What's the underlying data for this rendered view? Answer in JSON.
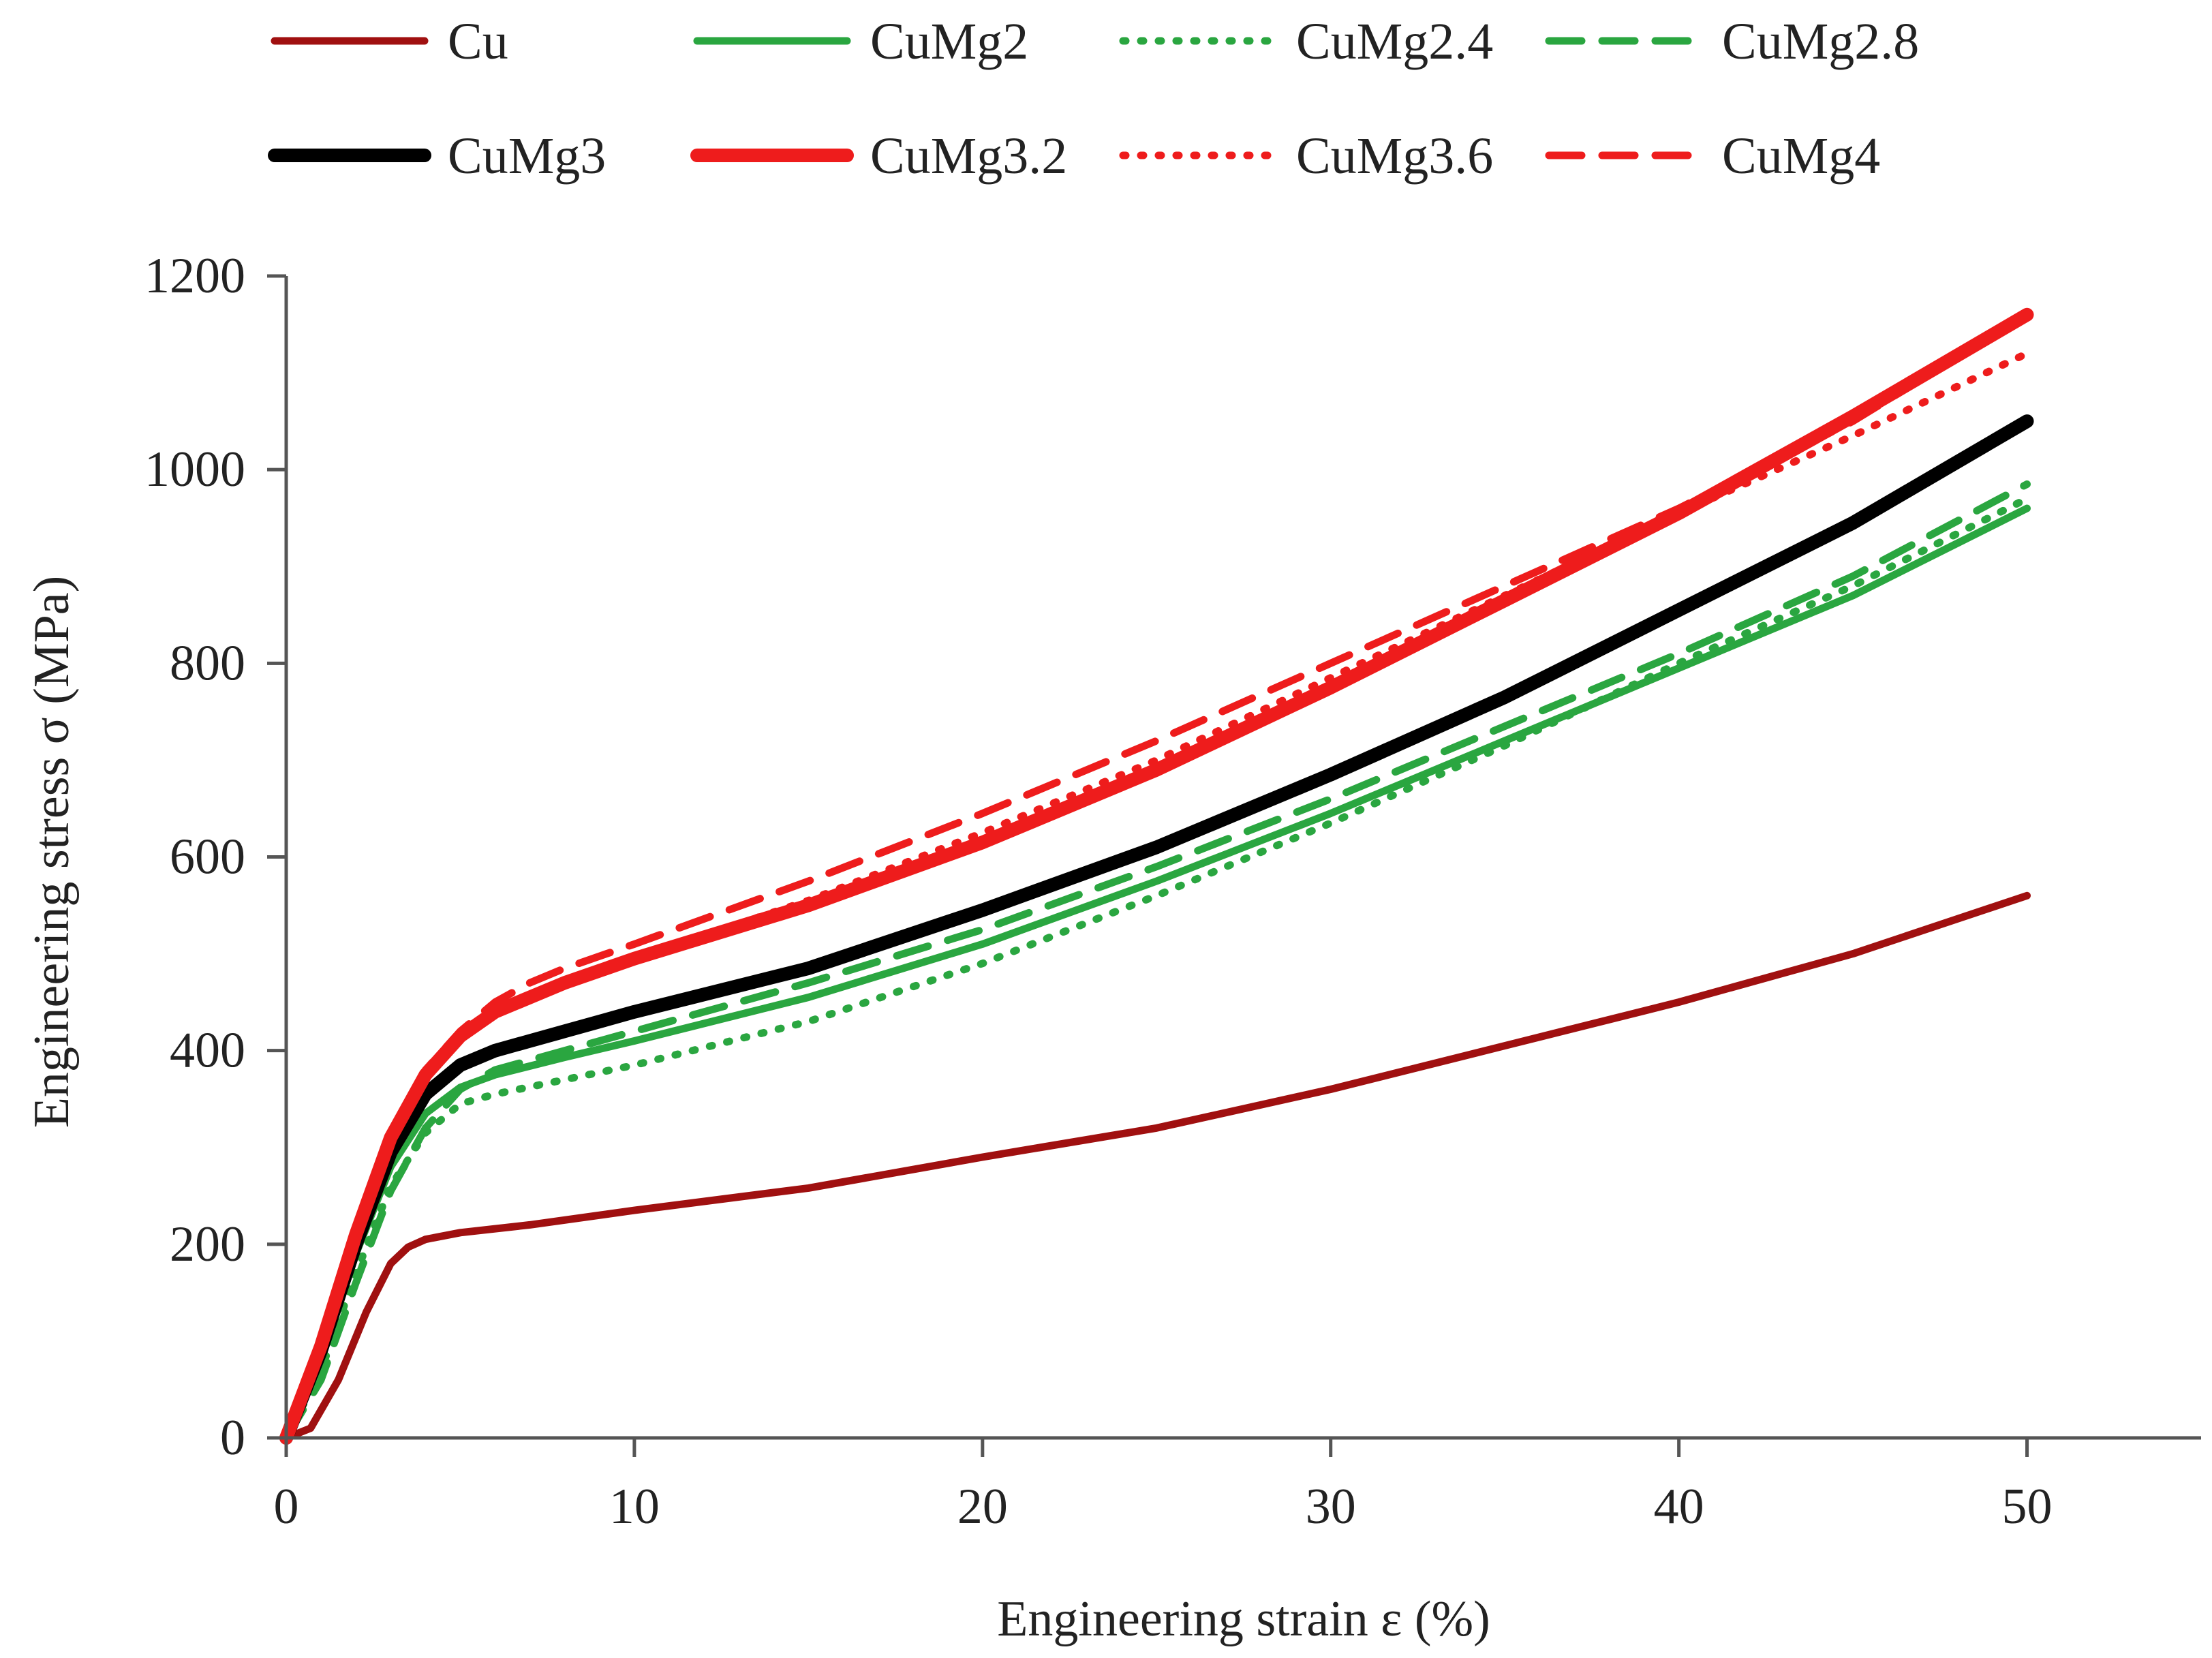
{
  "chart_data": {
    "type": "line",
    "title": "",
    "xlabel": "Engineering strain ε (%)",
    "ylabel": "Engineering stress σ (MPa)",
    "xlim": [
      0,
      55
    ],
    "ylim": [
      0,
      1200
    ],
    "xticks": [
      0,
      10,
      20,
      30,
      40,
      50
    ],
    "yticks": [
      0,
      200,
      400,
      600,
      800,
      1000,
      1200
    ],
    "grid": false,
    "legend_position": "top",
    "series": [
      {
        "name": "Cu",
        "color": "#a01010",
        "style": "solid",
        "weight": "thin",
        "x": [
          0,
          0.7,
          1.5,
          2.3,
          3,
          3.5,
          4,
          5,
          7,
          10,
          15,
          20,
          25,
          30,
          35,
          40,
          45,
          50
        ],
        "y": [
          0,
          10,
          60,
          130,
          180,
          197,
          205,
          212,
          220,
          235,
          258,
          290,
          320,
          360,
          405,
          450,
          500,
          560
        ]
      },
      {
        "name": "CuMg2",
        "color": "#2aa640",
        "style": "solid",
        "weight": "thin",
        "x": [
          0,
          1,
          2,
          3,
          4,
          5,
          6,
          8,
          10,
          15,
          20,
          25,
          30,
          35,
          40,
          45,
          50
        ],
        "y": [
          0,
          80,
          190,
          280,
          335,
          362,
          375,
          393,
          410,
          455,
          510,
          575,
          645,
          720,
          795,
          870,
          960
        ]
      },
      {
        "name": "CuMg2.4",
        "color": "#2aa640",
        "style": "dotted",
        "weight": "thin",
        "x": [
          0,
          1,
          2,
          3,
          4,
          5,
          6,
          8,
          10,
          15,
          20,
          25,
          30,
          35,
          40,
          45,
          50
        ],
        "y": [
          0,
          70,
          170,
          260,
          315,
          345,
          355,
          370,
          385,
          430,
          490,
          560,
          635,
          715,
          800,
          880,
          970
        ]
      },
      {
        "name": "CuMg2.8",
        "color": "#2aa640",
        "style": "dashed",
        "weight": "thin",
        "x": [
          0,
          1,
          2,
          3,
          4,
          5,
          6,
          8,
          10,
          15,
          20,
          25,
          30,
          35,
          40,
          45,
          50
        ],
        "y": [
          0,
          60,
          160,
          255,
          320,
          360,
          380,
          400,
          420,
          470,
          525,
          590,
          660,
          735,
          810,
          890,
          985
        ]
      },
      {
        "name": "CuMg3",
        "color": "#000000",
        "style": "solid",
        "weight": "thick",
        "x": [
          0,
          1,
          2,
          3,
          4,
          5,
          6,
          7,
          8,
          10,
          15,
          20,
          25,
          30,
          35,
          40,
          45,
          50
        ],
        "y": [
          0,
          90,
          200,
          295,
          355,
          385,
          400,
          410,
          420,
          440,
          485,
          545,
          610,
          685,
          765,
          855,
          945,
          1050
        ]
      },
      {
        "name": "CuMg3.2",
        "color": "#ee1c1c",
        "style": "solid",
        "weight": "thick",
        "x": [
          0,
          1,
          2,
          3,
          4,
          5,
          6,
          7,
          8,
          10,
          15,
          20,
          25,
          30,
          35,
          40,
          45,
          50
        ],
        "y": [
          0,
          95,
          210,
          310,
          375,
          415,
          440,
          455,
          470,
          495,
          550,
          615,
          690,
          775,
          865,
          955,
          1055,
          1160
        ]
      },
      {
        "name": "CuMg3.6",
        "color": "#ee1c1c",
        "style": "dotted",
        "weight": "thin",
        "x": [
          0,
          1,
          2,
          3,
          4,
          5,
          6,
          7,
          8,
          10,
          15,
          20,
          25,
          30,
          35,
          40,
          45,
          50
        ],
        "y": [
          0,
          95,
          210,
          310,
          375,
          415,
          440,
          455,
          470,
          495,
          555,
          625,
          700,
          785,
          870,
          955,
          1035,
          1120
        ]
      },
      {
        "name": "CuMg4",
        "color": "#ee1c1c",
        "style": "dashed",
        "weight": "thin",
        "x": [
          0,
          1,
          2,
          3,
          4,
          5,
          6,
          7,
          8,
          10,
          15,
          20,
          25,
          30,
          35,
          40,
          45,
          50
        ],
        "y": [
          0,
          95,
          215,
          315,
          380,
          420,
          450,
          470,
          485,
          510,
          575,
          645,
          720,
          800,
          880,
          960,
          1050,
          1160
        ]
      }
    ]
  }
}
